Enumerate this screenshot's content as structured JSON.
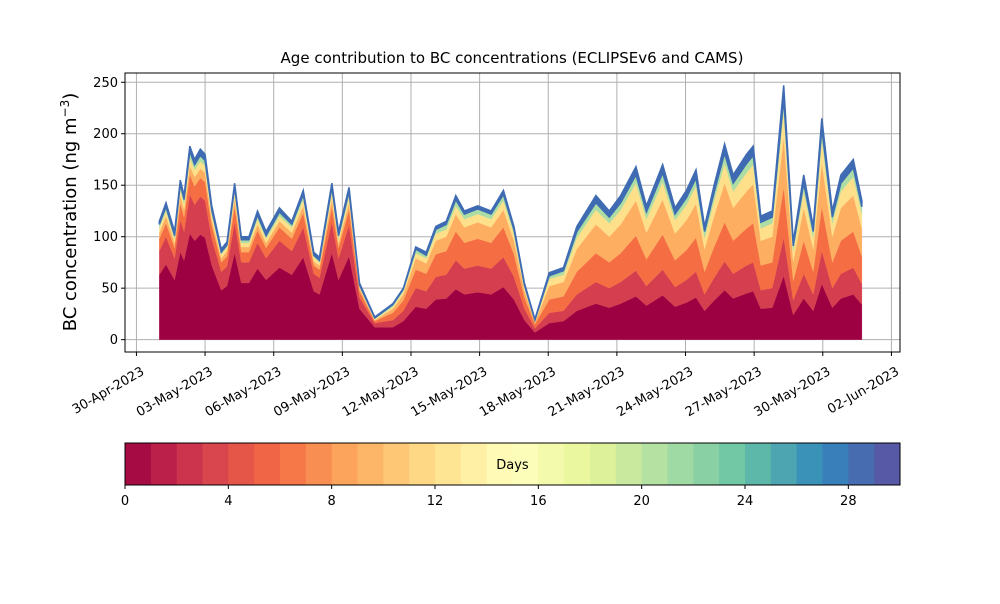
{
  "chart_data": {
    "type": "stacked_area",
    "title": "Age contribution to BC concentrations (ECLIPSEv6 and CAMS)",
    "ylabel": "BC concentration (ng m",
    "ylabel_sup": "−3",
    "ylabel_end": ")",
    "x": [
      "2023-05-01T00:00",
      "2023-05-01T07:00",
      "2023-05-01T16:00",
      "2023-05-01T22:00",
      "2023-05-02T02:00",
      "2023-05-02T08:00",
      "2023-05-02T13:00",
      "2023-05-02T19:00",
      "2023-05-03T00:00",
      "2023-05-03T07:00",
      "2023-05-03T17:00",
      "2023-05-03T23:00",
      "2023-05-04T07:00",
      "2023-05-04T14:00",
      "2023-05-04T22:00",
      "2023-05-05T07:00",
      "2023-05-05T16:00",
      "2023-05-06T06:00",
      "2023-05-06T19:00",
      "2023-05-07T07:00",
      "2023-05-07T18:00",
      "2023-05-08T00:00",
      "2023-05-08T13:00",
      "2023-05-08T20:00",
      "2023-05-09T07:00",
      "2023-05-09T18:00",
      "2023-05-10T10:00",
      "2023-05-11T05:00",
      "2023-05-11T16:00",
      "2023-05-12T05:00",
      "2023-05-12T16:00",
      "2023-05-13T02:00",
      "2023-05-13T13:00",
      "2023-05-13T23:00",
      "2023-05-14T08:00",
      "2023-05-14T22:00",
      "2023-05-15T12:00",
      "2023-05-16T01:00",
      "2023-05-16T12:00",
      "2023-05-16T23:00",
      "2023-05-17T10:00",
      "2023-05-18T01:00",
      "2023-05-18T16:00",
      "2023-05-19T06:00",
      "2023-05-20T02:00",
      "2023-05-20T16:00",
      "2023-05-21T04:00",
      "2023-05-21T20:00",
      "2023-05-22T07:00",
      "2023-05-23T00:00",
      "2023-05-23T13:00",
      "2023-05-24T01:00",
      "2023-05-24T11:00",
      "2023-05-24T20:00",
      "2023-05-25T06:00",
      "2023-05-25T17:00",
      "2023-05-26T02:00",
      "2023-05-26T16:00",
      "2023-05-26T23:00",
      "2023-05-27T07:00",
      "2023-05-27T19:00",
      "2023-05-28T07:00",
      "2023-05-28T17:00",
      "2023-05-29T04:00",
      "2023-05-29T14:00",
      "2023-05-29T23:00",
      "2023-05-30T10:00",
      "2023-05-30T19:00",
      "2023-05-31T08:00",
      "2023-05-31T17:00"
    ],
    "series": [
      {
        "color": "#9e0142",
        "values": [
          63,
          73,
          58,
          85,
          77,
          103,
          96,
          102,
          99,
          72,
          48,
          52,
          84,
          55,
          55,
          69,
          58,
          70,
          63,
          80,
          47,
          44,
          84,
          58,
          81,
          30,
          12,
          12,
          18,
          32,
          30,
          39,
          40,
          49,
          44,
          46,
          44,
          51,
          39,
          19,
          7,
          16,
          18,
          28,
          35,
          31,
          35,
          42,
          33,
          43,
          32,
          36,
          41,
          28,
          38,
          48,
          40,
          45,
          47,
          30,
          31,
          62,
          24,
          40,
          28,
          54,
          31,
          40,
          44,
          34
        ]
      },
      {
        "color": "#d53e4f",
        "values": [
          23,
          27,
          21,
          31,
          28,
          38,
          35,
          37,
          36,
          26,
          18,
          19,
          30,
          20,
          20,
          25,
          21,
          26,
          23,
          29,
          17,
          16,
          30,
          21,
          30,
          11,
          4,
          7,
          10,
          18,
          17,
          22,
          23,
          28,
          25,
          26,
          25,
          29,
          22,
          11,
          4,
          10,
          10,
          16,
          21,
          19,
          21,
          25,
          19,
          25,
          19,
          22,
          25,
          16,
          22,
          28,
          24,
          27,
          28,
          18,
          19,
          37,
          14,
          24,
          16,
          32,
          19,
          24,
          26,
          20
        ]
      },
      {
        "color": "#f46d43",
        "values": [
          12,
          13,
          10,
          16,
          14,
          19,
          18,
          18,
          18,
          13,
          9,
          10,
          15,
          10,
          10,
          12,
          10,
          13,
          12,
          14,
          8,
          8,
          15,
          10,
          15,
          6,
          2,
          7,
          10,
          18,
          17,
          22,
          23,
          28,
          25,
          26,
          25,
          29,
          22,
          11,
          4,
          13,
          14,
          22,
          28,
          25,
          28,
          34,
          26,
          34,
          26,
          29,
          33,
          22,
          30,
          38,
          32,
          36,
          38,
          24,
          25,
          49,
          19,
          32,
          22,
          43,
          25,
          32,
          35,
          27
        ]
      },
      {
        "color": "#fdae61",
        "values": [
          6,
          7,
          5,
          8,
          7,
          9,
          9,
          9,
          9,
          6,
          4,
          5,
          8,
          5,
          5,
          6,
          5,
          6,
          6,
          7,
          4,
          4,
          8,
          5,
          7,
          3,
          1,
          4,
          6,
          11,
          10,
          13,
          14,
          17,
          15,
          16,
          15,
          17,
          13,
          7,
          2,
          13,
          14,
          22,
          28,
          25,
          28,
          34,
          26,
          34,
          26,
          29,
          33,
          22,
          30,
          38,
          32,
          36,
          38,
          24,
          25,
          49,
          19,
          32,
          22,
          43,
          25,
          32,
          35,
          27
        ]
      },
      {
        "color": "#fee08b",
        "values": [
          5,
          5,
          4,
          6,
          6,
          8,
          7,
          7,
          7,
          5,
          4,
          4,
          6,
          4,
          4,
          5,
          4,
          5,
          5,
          6,
          4,
          3,
          6,
          4,
          6,
          2,
          1,
          2,
          3,
          5,
          5,
          7,
          7,
          8,
          8,
          8,
          8,
          9,
          7,
          3,
          1,
          7,
          7,
          11,
          14,
          13,
          14,
          17,
          13,
          17,
          13,
          15,
          17,
          11,
          15,
          19,
          16,
          18,
          19,
          12,
          13,
          25,
          10,
          16,
          11,
          22,
          13,
          16,
          18,
          14
        ]
      },
      {
        "color": "#abdda4",
        "values": [
          3,
          4,
          3,
          5,
          4,
          6,
          5,
          6,
          5,
          4,
          2,
          2,
          5,
          3,
          3,
          4,
          3,
          4,
          3,
          5,
          2,
          2,
          5,
          3,
          5,
          1,
          1,
          2,
          2,
          4,
          3,
          4,
          5,
          6,
          5,
          5,
          5,
          6,
          4,
          2,
          1,
          3,
          4,
          6,
          7,
          6,
          7,
          8,
          7,
          9,
          6,
          7,
          8,
          6,
          8,
          10,
          8,
          9,
          9,
          6,
          6,
          12,
          5,
          8,
          6,
          11,
          6,
          8,
          9,
          7
        ]
      },
      {
        "color": "#3f6bb3",
        "values": [
          3,
          4,
          4,
          4,
          4,
          5,
          5,
          6,
          6,
          4,
          3,
          3,
          4,
          3,
          3,
          4,
          4,
          4,
          3,
          4,
          3,
          3,
          4,
          4,
          4,
          2,
          1,
          1,
          1,
          2,
          3,
          3,
          3,
          4,
          3,
          3,
          3,
          4,
          3,
          2,
          1,
          3,
          3,
          5,
          7,
          6,
          7,
          8,
          6,
          8,
          6,
          7,
          8,
          5,
          7,
          9,
          8,
          9,
          9,
          6,
          6,
          13,
          4,
          8,
          5,
          10,
          6,
          8,
          8,
          6
        ]
      }
    ],
    "xlim": [
      "2023-04-29T12:00",
      "2023-06-02T09:00"
    ],
    "xticks": [
      {
        "value": "2023-04-30T00:00",
        "label": "30-Apr-2023"
      },
      {
        "value": "2023-05-03T00:00",
        "label": "03-May-2023"
      },
      {
        "value": "2023-05-06T00:00",
        "label": "06-May-2023"
      },
      {
        "value": "2023-05-09T00:00",
        "label": "09-May-2023"
      },
      {
        "value": "2023-05-12T00:00",
        "label": "12-May-2023"
      },
      {
        "value": "2023-05-15T00:00",
        "label": "15-May-2023"
      },
      {
        "value": "2023-05-18T00:00",
        "label": "18-May-2023"
      },
      {
        "value": "2023-05-21T00:00",
        "label": "21-May-2023"
      },
      {
        "value": "2023-05-24T00:00",
        "label": "24-May-2023"
      },
      {
        "value": "2023-05-27T00:00",
        "label": "27-May-2023"
      },
      {
        "value": "2023-05-30T00:00",
        "label": "30-May-2023"
      },
      {
        "value": "2023-06-02T00:00",
        "label": "02-Jun-2023"
      }
    ],
    "ylim": [
      -12,
      259
    ],
    "yticks": [
      0,
      50,
      100,
      150,
      200,
      250
    ],
    "grid": true,
    "colorbar": {
      "label": "Days",
      "lim": [
        0,
        30
      ],
      "ticks": [
        0,
        4,
        8,
        12,
        16,
        20,
        24,
        28
      ],
      "bins": 30,
      "stops": [
        "#9e0142",
        "#d53e4f",
        "#f46d43",
        "#fdae61",
        "#fee08b",
        "#ffffbf",
        "#e6f598",
        "#abdda4",
        "#66c2a5",
        "#3288bd",
        "#5e4fa2"
      ]
    }
  }
}
